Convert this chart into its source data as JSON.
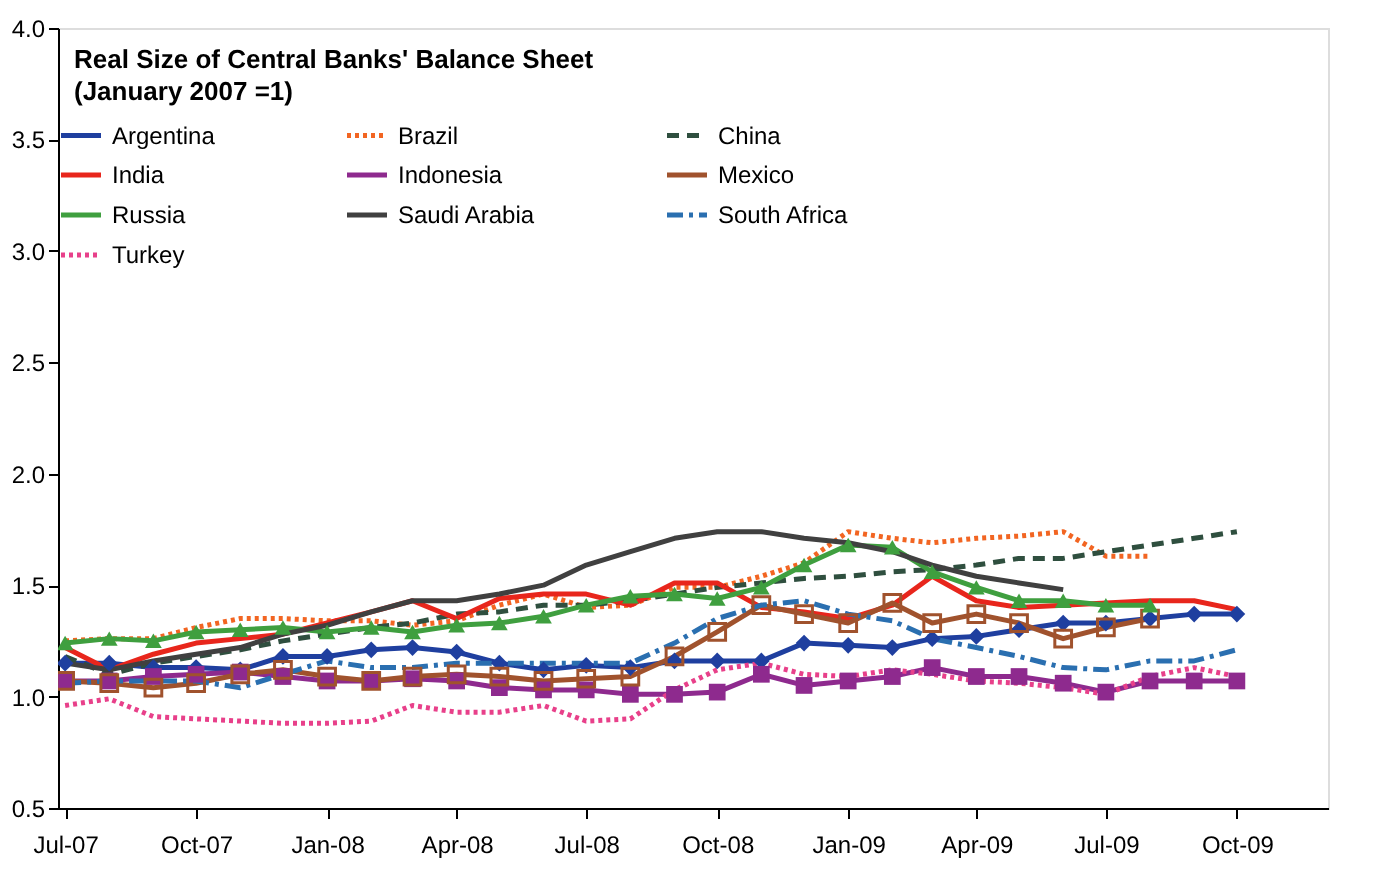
{
  "chart_data": {
    "type": "line",
    "title": "Real Size of Central Banks' Balance Sheet",
    "subtitle": "(January 2007 =1)",
    "x": [
      "2007-07-01",
      "2007-08-01",
      "2007-09-01",
      "2007-10-01",
      "2007-11-01",
      "2007-12-01",
      "2008-01-01",
      "2008-02-01",
      "2008-03-01",
      "2008-04-01",
      "2008-05-01",
      "2008-06-01",
      "2008-07-01",
      "2008-08-01",
      "2008-09-01",
      "2008-10-01",
      "2008-11-01",
      "2008-12-01",
      "2009-01-01",
      "2009-02-01",
      "2009-03-01",
      "2009-04-01",
      "2009-05-01",
      "2009-06-01",
      "2009-07-01",
      "2009-08-01",
      "2009-09-01",
      "2009-10-01"
    ],
    "xlim": [
      "2007-06-26",
      "2009-12-04"
    ],
    "xticks": [
      {
        "value": "2007-07-01",
        "label": "Jul-07"
      },
      {
        "value": "2007-10-01",
        "label": "Oct-07"
      },
      {
        "value": "2008-01-01",
        "label": "Jan-08"
      },
      {
        "value": "2008-04-01",
        "label": "Apr-08"
      },
      {
        "value": "2008-07-01",
        "label": "Jul-08"
      },
      {
        "value": "2008-10-01",
        "label": "Oct-08"
      },
      {
        "value": "2009-01-01",
        "label": "Jan-09"
      },
      {
        "value": "2009-04-01",
        "label": "Apr-09"
      },
      {
        "value": "2009-07-01",
        "label": "Jul-09"
      },
      {
        "value": "2009-10-01",
        "label": "Oct-09"
      }
    ],
    "ylim": [
      0.5,
      4.0
    ],
    "yticks": [
      {
        "value": 0.5,
        "label": "0.5"
      },
      {
        "value": 1.0,
        "label": "1.0"
      },
      {
        "value": 1.5,
        "label": "1.5"
      },
      {
        "value": 2.0,
        "label": "2.0"
      },
      {
        "value": 2.5,
        "label": "2.5"
      },
      {
        "value": 3.0,
        "label": "3.0"
      },
      {
        "value": 3.5,
        "label": "3.5"
      },
      {
        "value": 4.0,
        "label": "4.0"
      }
    ],
    "grid": false,
    "legend": "top",
    "series": [
      {
        "name": "Argentina",
        "color": "#1f3f9f",
        "marker": "diamond",
        "line_style": "solid",
        "values": [
          1.15,
          1.15,
          1.13,
          1.13,
          1.12,
          1.18,
          1.18,
          1.21,
          1.22,
          1.2,
          1.15,
          1.12,
          1.14,
          1.13,
          1.16,
          1.16,
          1.16,
          1.24,
          1.23,
          1.22,
          1.26,
          1.27,
          1.3,
          1.33,
          1.33,
          1.35,
          1.37,
          1.37
        ]
      },
      {
        "name": "Brazil",
        "color": "#f26522",
        "marker": "none",
        "line_style": "dotted",
        "values": [
          1.25,
          1.26,
          1.26,
          1.31,
          1.35,
          1.35,
          1.34,
          1.34,
          1.32,
          1.34,
          1.41,
          1.46,
          1.4,
          1.41,
          1.49,
          1.49,
          1.54,
          1.6,
          1.74,
          1.71,
          1.69,
          1.71,
          1.72,
          1.74,
          1.63,
          1.63,
          null,
          null
        ]
      },
      {
        "name": "China",
        "color": "#2f4f3f",
        "marker": "none",
        "line_style": "dashed",
        "values": [
          1.18,
          1.1,
          1.15,
          1.18,
          1.21,
          1.25,
          1.28,
          1.31,
          1.33,
          1.37,
          1.38,
          1.41,
          1.41,
          1.43,
          1.46,
          1.49,
          1.51,
          1.53,
          1.54,
          1.56,
          1.57,
          1.59,
          1.62,
          1.62,
          1.65,
          1.68,
          1.71,
          1.74
        ]
      },
      {
        "name": "India",
        "color": "#e8261c",
        "marker": "none",
        "line_style": "solid",
        "values": [
          1.22,
          1.12,
          1.19,
          1.24,
          1.26,
          1.28,
          1.33,
          1.38,
          1.43,
          1.35,
          1.44,
          1.46,
          1.46,
          1.41,
          1.51,
          1.51,
          1.4,
          1.38,
          1.35,
          1.41,
          1.54,
          1.43,
          1.4,
          1.41,
          1.42,
          1.43,
          1.43,
          1.39
        ]
      },
      {
        "name": "Indonesia",
        "color": "#8e2a8e",
        "marker": "square",
        "line_style": "solid",
        "values": [
          1.07,
          1.07,
          1.09,
          1.1,
          1.11,
          1.09,
          1.07,
          1.07,
          1.08,
          1.07,
          1.04,
          1.03,
          1.03,
          1.01,
          1.01,
          1.02,
          1.1,
          1.05,
          1.07,
          1.09,
          1.13,
          1.09,
          1.09,
          1.06,
          1.02,
          1.07,
          1.07,
          1.07
        ]
      },
      {
        "name": "Mexico",
        "color": "#a0522d",
        "marker": "square-open",
        "line_style": "solid",
        "values": [
          1.07,
          1.06,
          1.04,
          1.06,
          1.1,
          1.12,
          1.09,
          1.07,
          1.09,
          1.1,
          1.09,
          1.07,
          1.08,
          1.09,
          1.18,
          1.29,
          1.41,
          1.37,
          1.33,
          1.42,
          1.33,
          1.37,
          1.33,
          1.26,
          1.31,
          1.35,
          null,
          null
        ]
      },
      {
        "name": "Russia",
        "color": "#3f9f3f",
        "marker": "triangle",
        "line_style": "solid",
        "values": [
          1.24,
          1.26,
          1.25,
          1.29,
          1.3,
          1.31,
          1.29,
          1.31,
          1.29,
          1.32,
          1.33,
          1.36,
          1.41,
          1.45,
          1.46,
          1.44,
          1.49,
          1.59,
          1.68,
          1.67,
          1.56,
          1.49,
          1.43,
          1.43,
          1.41,
          1.41,
          null,
          null
        ]
      },
      {
        "name": "Saudi Arabia",
        "color": "#404040",
        "marker": "none",
        "line_style": "solid",
        "values": [
          1.15,
          1.12,
          1.16,
          1.19,
          1.22,
          1.28,
          1.32,
          1.38,
          1.43,
          1.43,
          1.46,
          1.5,
          1.59,
          1.65,
          1.71,
          1.74,
          1.74,
          1.71,
          1.69,
          1.65,
          1.59,
          1.54,
          1.51,
          1.48,
          null,
          null,
          null,
          null
        ]
      },
      {
        "name": "South Africa",
        "color": "#2a6fb0",
        "marker": "none",
        "line_style": "dashdot",
        "values": [
          1.06,
          1.07,
          1.07,
          1.07,
          1.04,
          1.1,
          1.16,
          1.13,
          1.13,
          1.15,
          1.15,
          1.15,
          1.15,
          1.15,
          1.24,
          1.35,
          1.41,
          1.43,
          1.37,
          1.34,
          1.26,
          1.22,
          1.18,
          1.13,
          1.12,
          1.16,
          1.16,
          1.21
        ]
      },
      {
        "name": "Turkey",
        "color": "#e8408a",
        "marker": "none",
        "line_style": "dotted",
        "values": [
          0.96,
          0.99,
          0.91,
          0.9,
          0.89,
          0.88,
          0.88,
          0.89,
          0.96,
          0.93,
          0.93,
          0.96,
          0.89,
          0.9,
          1.03,
          1.12,
          1.15,
          1.1,
          1.09,
          1.12,
          1.1,
          1.07,
          1.06,
          1.04,
          1.01,
          1.09,
          1.13,
          1.09
        ]
      }
    ]
  }
}
